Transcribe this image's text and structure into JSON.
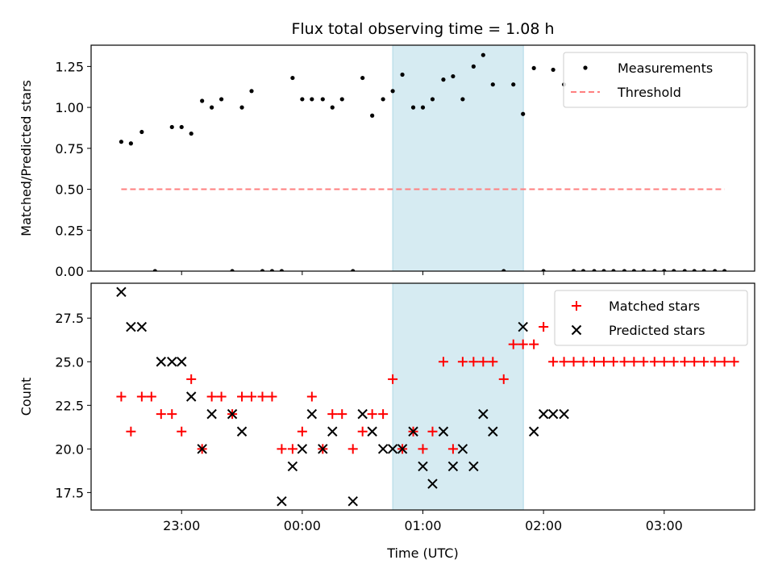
{
  "chart_data": [
    {
      "type": "scatter",
      "title": "Flux total observing time = 1.08 h",
      "xlabel": "",
      "ylabel": "Matched/Predicted stars",
      "ylim": [
        0,
        1.38
      ],
      "yticks": [
        "0.00",
        "0.25",
        "0.50",
        "0.75",
        "1.00",
        "1.25"
      ],
      "legend_position": "top-right",
      "shaded_span_hours": [
        0.75,
        1.833
      ],
      "series": [
        {
          "name": "Measurements",
          "marker": "dot",
          "color": "#000000",
          "x": [
            -1.5,
            -1.42,
            -1.33,
            -1.22,
            -1.08,
            -1.0,
            -0.92,
            -0.83,
            -0.75,
            -0.67,
            -0.58,
            -0.5,
            -0.42,
            -0.33,
            -0.25,
            -0.17,
            -0.08,
            0.0,
            0.08,
            0.17,
            0.25,
            0.33,
            0.42,
            0.5,
            0.58,
            0.67,
            0.75,
            0.83,
            0.92,
            1.0,
            1.08,
            1.17,
            1.25,
            1.33,
            1.42,
            1.5,
            1.58,
            1.67,
            1.75,
            1.83,
            1.92,
            2.0,
            2.08,
            2.17,
            2.25,
            2.33,
            2.42,
            2.5,
            2.58,
            2.67,
            2.75,
            2.83,
            2.92,
            3.0,
            3.08,
            3.17,
            3.25,
            3.33,
            3.42,
            3.5
          ],
          "y": [
            0.79,
            0.78,
            0.85,
            0.0,
            0.88,
            0.88,
            0.84,
            1.04,
            1.0,
            1.05,
            0.0,
            1.0,
            1.1,
            0.0,
            0.0,
            0.0,
            1.18,
            1.05,
            1.05,
            1.05,
            1.0,
            1.05,
            0.0,
            1.18,
            0.95,
            1.05,
            1.1,
            1.2,
            1.0,
            1.0,
            1.05,
            1.17,
            1.19,
            1.05,
            1.25,
            1.32,
            1.14,
            0.0,
            1.14,
            0.96,
            1.24,
            0.0,
            1.23,
            1.14,
            0.0,
            0.0,
            0.0,
            0.0,
            0.0,
            0.0,
            0.0,
            0.0,
            0.0,
            0.0,
            0.0,
            0.0,
            0.0,
            0.0,
            0.0,
            0.0
          ]
        },
        {
          "name": "Threshold",
          "marker": "dashed-line",
          "color": "#ff7f7f",
          "x": [
            -1.5,
            3.5
          ],
          "y": [
            0.5,
            0.5
          ]
        }
      ]
    },
    {
      "type": "scatter",
      "title": "",
      "xlabel": "Time (UTC)",
      "ylabel": "Count",
      "ylim": [
        16.5,
        29.5
      ],
      "yticks": [
        "17.5",
        "20.0",
        "22.5",
        "25.0",
        "27.5"
      ],
      "xlim_hours": [
        -1.75,
        3.75
      ],
      "xticks": [
        {
          "hours": -1.0,
          "label": "23:00"
        },
        {
          "hours": 0.0,
          "label": "00:00"
        },
        {
          "hours": 1.0,
          "label": "01:00"
        },
        {
          "hours": 2.0,
          "label": "02:00"
        },
        {
          "hours": 3.0,
          "label": "03:00"
        }
      ],
      "legend_position": "top-right",
      "shaded_span_hours": [
        0.75,
        1.833
      ],
      "series": [
        {
          "name": "Matched stars",
          "marker": "plus",
          "color": "#ff0000",
          "x": [
            -1.5,
            -1.42,
            -1.33,
            -1.25,
            -1.17,
            -1.08,
            -1.0,
            -0.92,
            -0.83,
            -0.75,
            -0.67,
            -0.58,
            -0.5,
            -0.42,
            -0.33,
            -0.25,
            -0.17,
            -0.08,
            0.0,
            0.08,
            0.17,
            0.25,
            0.33,
            0.42,
            0.5,
            0.58,
            0.67,
            0.75,
            0.83,
            0.92,
            1.0,
            1.08,
            1.17,
            1.25,
            1.33,
            1.42,
            1.5,
            1.58,
            1.67,
            1.75,
            1.83,
            1.92,
            2.0,
            2.08,
            2.17,
            2.25,
            2.33,
            2.42,
            2.5,
            2.58,
            2.67,
            2.75,
            2.83,
            2.92,
            3.0,
            3.08,
            3.17,
            3.25,
            3.33,
            3.42,
            3.5,
            3.58
          ],
          "y": [
            23,
            21,
            23,
            23,
            22,
            22,
            21,
            24,
            20,
            23,
            23,
            22,
            23,
            23,
            23,
            23,
            20,
            20,
            21,
            23,
            20,
            22,
            22,
            20,
            21,
            22,
            22,
            24,
            20,
            21,
            20,
            21,
            25,
            20,
            25,
            25,
            25,
            25,
            24,
            26,
            26,
            26,
            27,
            25,
            25,
            25,
            25,
            25,
            25,
            25,
            25,
            25,
            25,
            25,
            25,
            25,
            25,
            25,
            25,
            25,
            25,
            25
          ]
        },
        {
          "name": "Predicted stars",
          "marker": "x",
          "color": "#000000",
          "x": [
            -1.5,
            -1.42,
            -1.33,
            -1.17,
            -1.08,
            -1.0,
            -0.92,
            -0.83,
            -0.75,
            -0.58,
            -0.5,
            -0.17,
            -0.08,
            0.0,
            0.08,
            0.17,
            0.25,
            0.42,
            0.5,
            0.58,
            0.67,
            0.75,
            0.83,
            0.92,
            1.0,
            1.08,
            1.17,
            1.25,
            1.33,
            1.42,
            1.5,
            1.58,
            1.83,
            1.92,
            2.0,
            2.08,
            2.17
          ],
          "y": [
            29,
            27,
            27,
            25,
            25,
            25,
            23,
            20,
            22,
            22,
            21,
            17,
            19,
            20,
            22,
            20,
            21,
            17,
            22,
            21,
            20,
            20,
            20,
            21,
            19,
            18,
            21,
            19,
            20,
            19,
            22,
            21,
            27,
            21,
            22,
            22,
            22
          ]
        }
      ]
    }
  ]
}
